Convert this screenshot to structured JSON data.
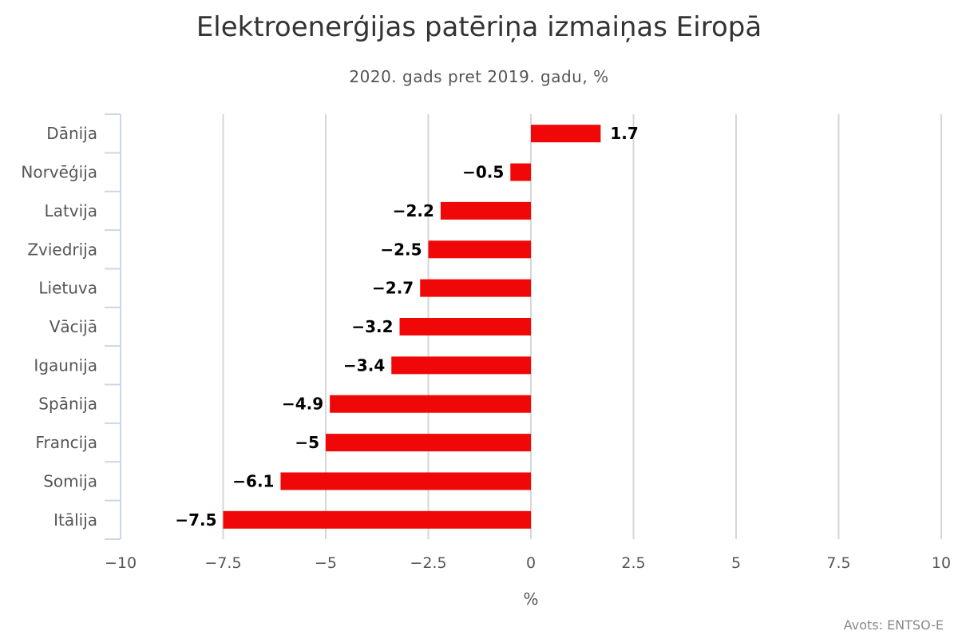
{
  "title": "Elektroenerģijas patēriņa izmaiņas Eiropā",
  "subtitle": "2020. gads pret 2019. gadu, %",
  "credit": "Avots: ENTSO-E",
  "chart_data": {
    "type": "bar",
    "orientation": "horizontal",
    "categories": [
      "Dānija",
      "Norvēģija",
      "Latvija",
      "Zviedrija",
      "Lietuva",
      "Vācijā",
      "Igaunija",
      "Spānija",
      "Francija",
      "Somija",
      "Itālija"
    ],
    "values": [
      1.7,
      -0.5,
      -2.2,
      -2.5,
      -2.7,
      -3.2,
      -3.4,
      -4.9,
      -5,
      -6.1,
      -7.5
    ],
    "data_labels": [
      "1.7",
      "−0.5",
      "−2.2",
      "−2.5",
      "−2.7",
      "−3.2",
      "−3.4",
      "−4.9",
      "−5",
      "−6.1",
      "−7.5"
    ],
    "xlabel": "%",
    "xlim": [
      -10,
      10
    ],
    "xticks": [
      -10,
      -7.5,
      -5,
      -2.5,
      0,
      2.5,
      5,
      7.5,
      10
    ],
    "xtick_labels": [
      "−10",
      "−7.5",
      "−5",
      "−2.5",
      "0",
      "2.5",
      "5",
      "7.5",
      "10"
    ],
    "grid": true,
    "bar_color": "#f00808",
    "grid_color": "#d6d6d6",
    "axis_color": "#ccd6eb",
    "label_color": "#555555",
    "data_label_color": "#000000"
  }
}
